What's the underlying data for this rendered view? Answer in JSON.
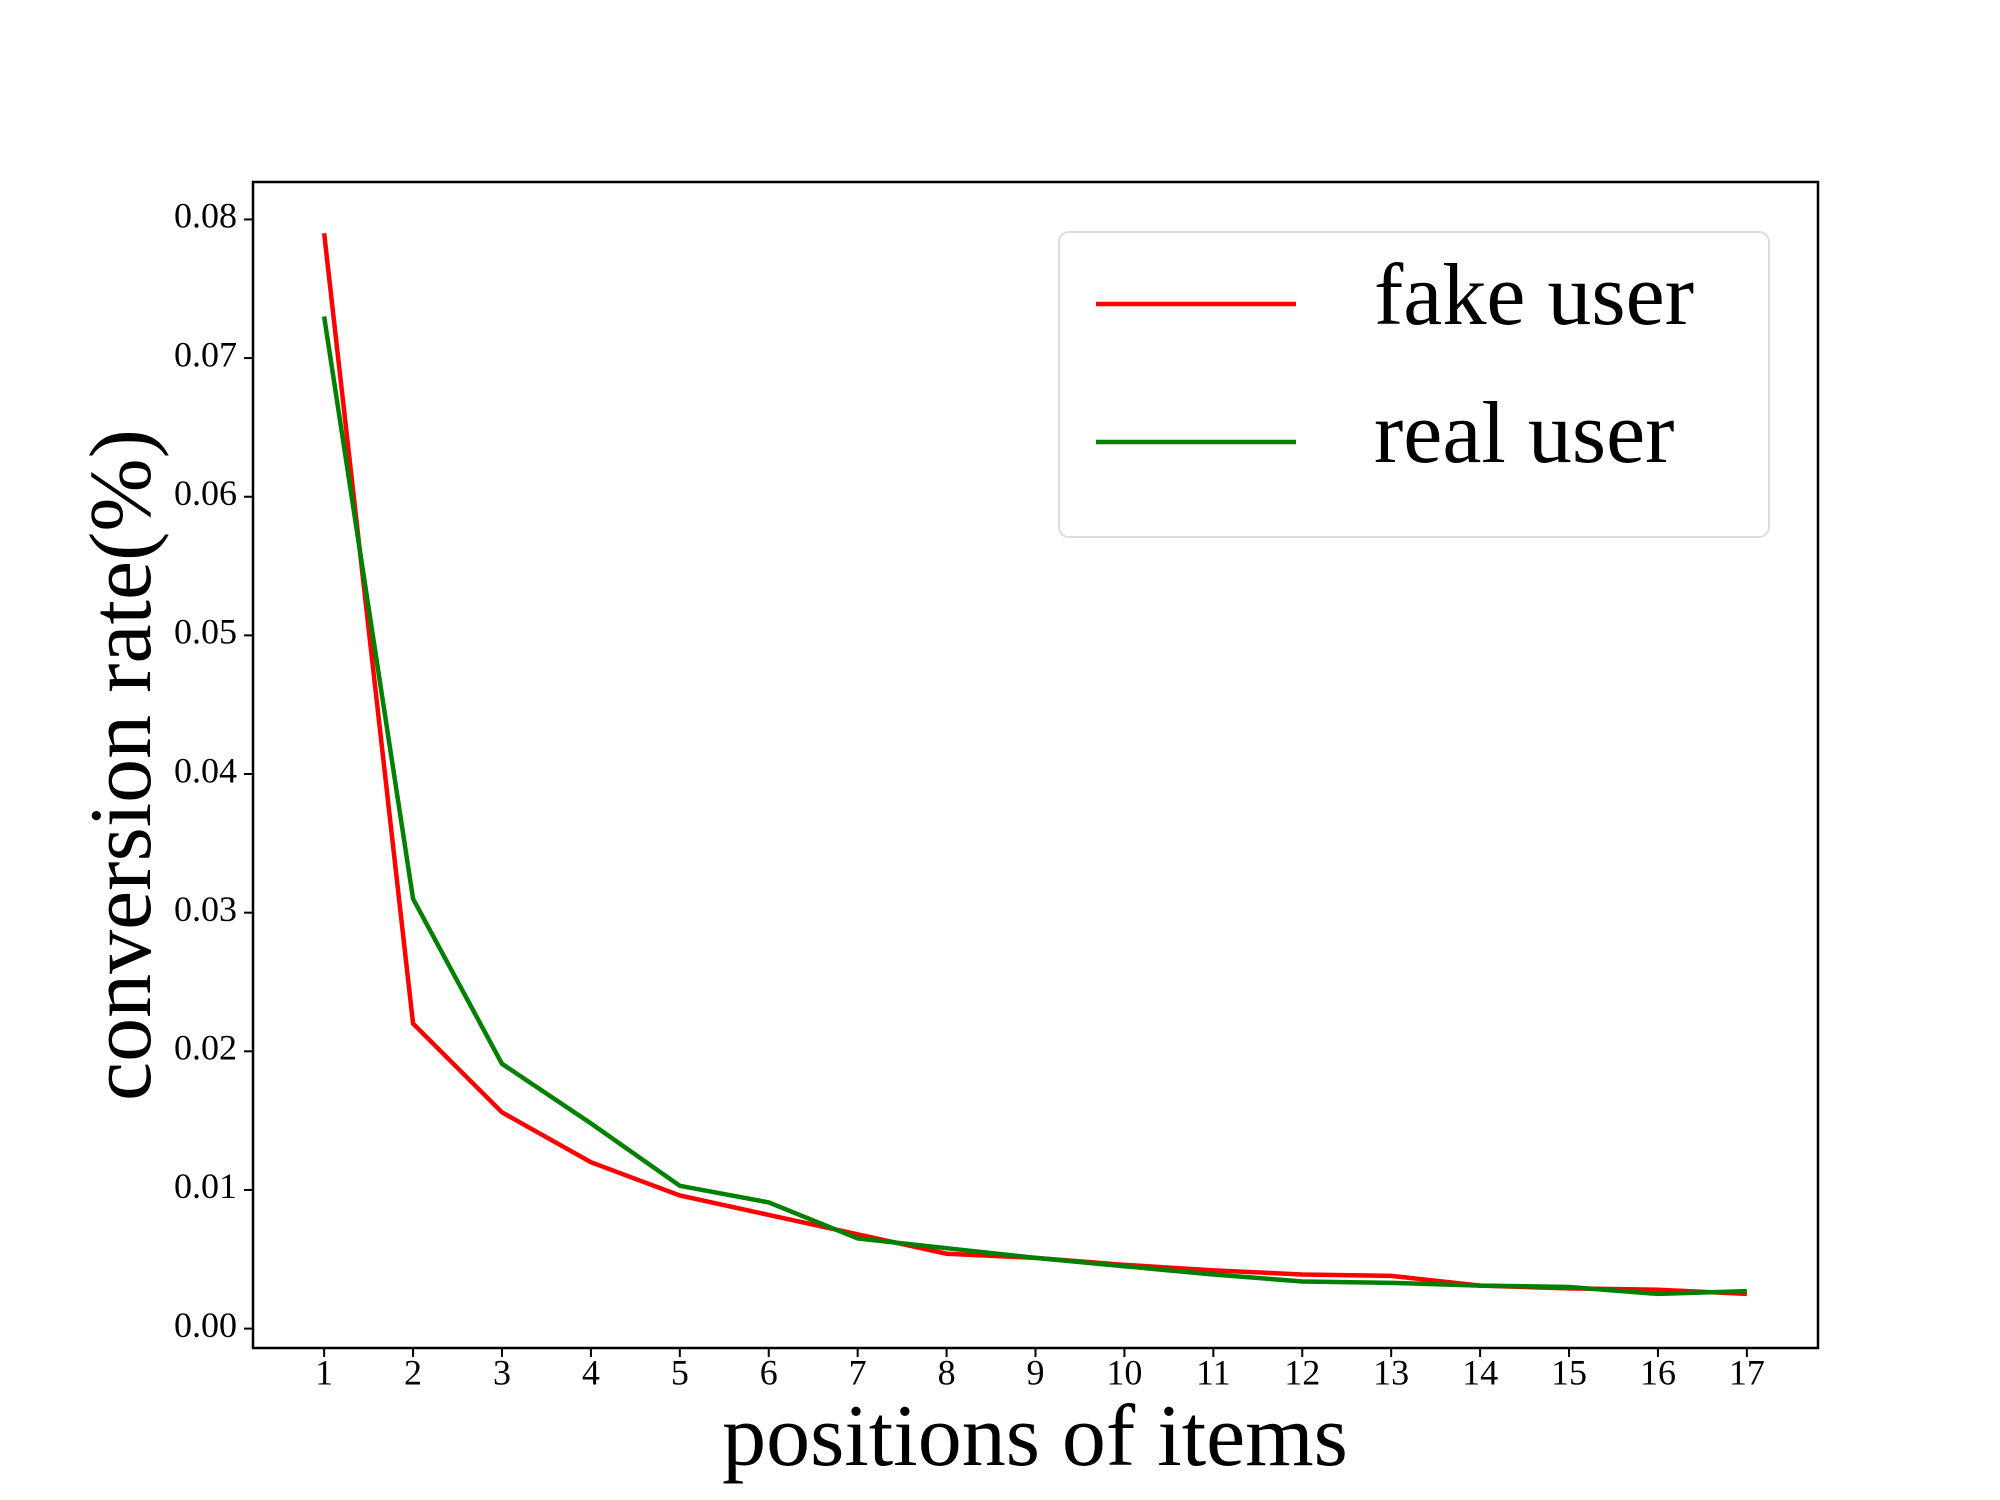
{
  "chart_data": {
    "type": "line",
    "xlabel": "positions of items",
    "ylabel": "conversion rate(%)",
    "x": [
      1,
      2,
      3,
      4,
      5,
      6,
      7,
      8,
      9,
      10,
      11,
      12,
      13,
      14,
      15,
      16,
      17
    ],
    "series": [
      {
        "name": "fake user",
        "color": "#ff0000",
        "values": [
          0.079,
          0.022,
          0.0156,
          0.012,
          0.0096,
          0.0082,
          0.0068,
          0.0054,
          0.0051,
          0.0046,
          0.0042,
          0.0039,
          0.0038,
          0.0031,
          0.0029,
          0.0028,
          0.0025
        ]
      },
      {
        "name": "real user",
        "color": "#008000",
        "values": [
          0.073,
          0.031,
          0.0191,
          0.0148,
          0.0103,
          0.0091,
          0.0065,
          0.0058,
          0.0051,
          0.0045,
          0.0039,
          0.0034,
          0.0033,
          0.0031,
          0.003,
          0.0025,
          0.0027
        ]
      }
    ],
    "xlim": [
      0.2,
      17.8
    ],
    "ylim": [
      -0.0014,
      0.0827
    ],
    "xticks": [
      1,
      2,
      3,
      4,
      5,
      6,
      7,
      8,
      9,
      10,
      11,
      12,
      13,
      14,
      15,
      16,
      17
    ],
    "yticks": [
      {
        "value": 0,
        "label": "0.00"
      },
      {
        "value": 0.01,
        "label": "0.01"
      },
      {
        "value": 0.02,
        "label": "0.02"
      },
      {
        "value": 0.03,
        "label": "0.03"
      },
      {
        "value": 0.04,
        "label": "0.04"
      },
      {
        "value": 0.05,
        "label": "0.05"
      },
      {
        "value": 0.06,
        "label": "0.06"
      },
      {
        "value": 0.07,
        "label": "0.07"
      },
      {
        "value": 0.08,
        "label": "0.08"
      }
    ],
    "grid": false,
    "legend": "upper right"
  }
}
